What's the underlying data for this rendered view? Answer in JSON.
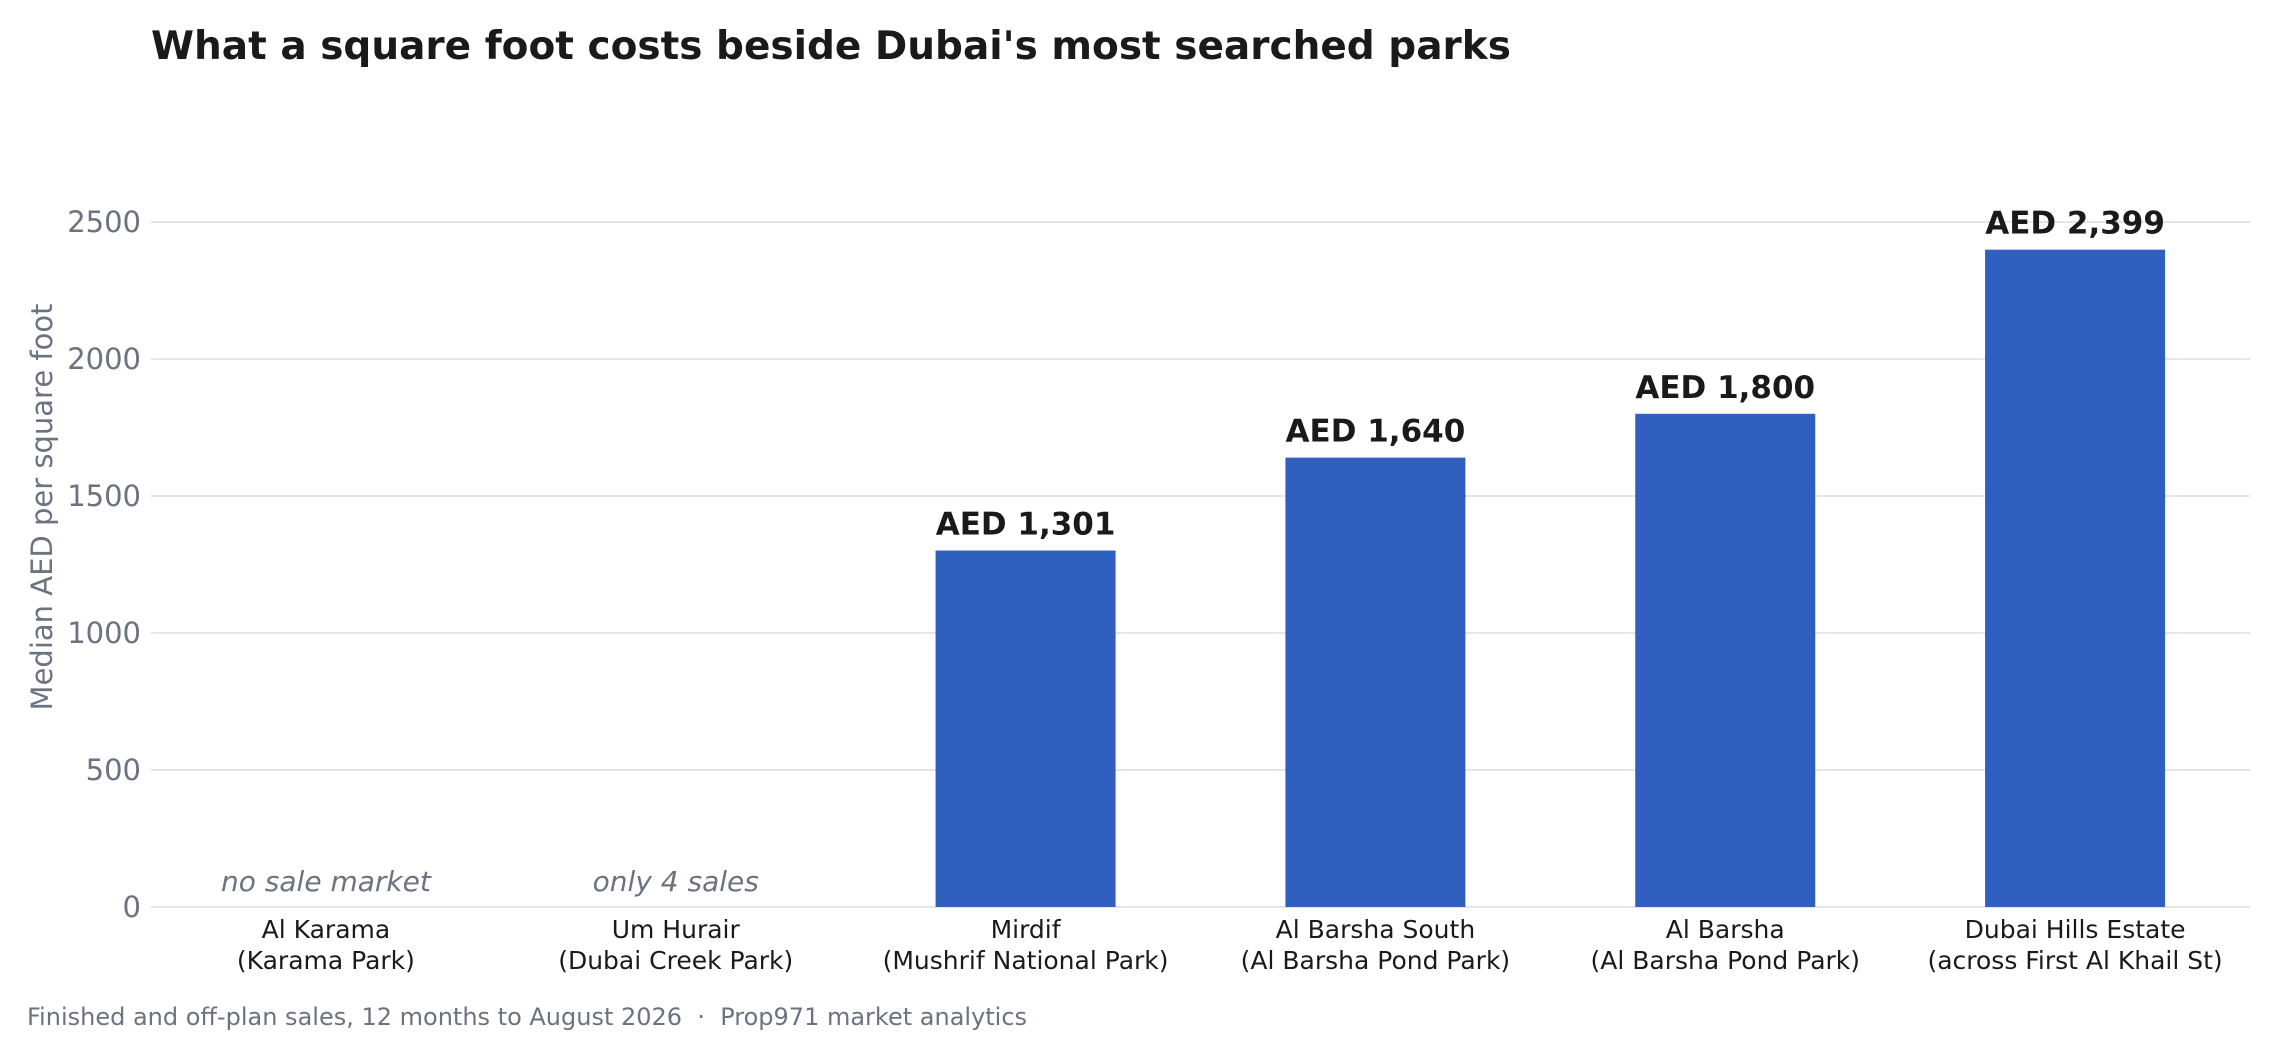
{
  "chart_data": {
    "type": "bar",
    "title": "What a square foot costs beside Dubai's most searched parks",
    "ylabel": "Median AED per square foot",
    "xlabel": "",
    "ylim": [
      0,
      2800
    ],
    "yticks": [
      0,
      500,
      1000,
      1500,
      2000,
      2500
    ],
    "grid": true,
    "categories": [
      [
        "Al Karama",
        "(Karama Park)"
      ],
      [
        "Um Hurair",
        "(Dubai Creek Park)"
      ],
      [
        "Mirdif",
        "(Mushrif National Park)"
      ],
      [
        "Al Barsha South",
        "(Al Barsha Pond Park)"
      ],
      [
        "Al Barsha",
        "(Al Barsha Pond Park)"
      ],
      [
        "Dubai Hills Estate",
        "(across First Al Khail St)"
      ]
    ],
    "values": [
      null,
      null,
      1301,
      1640,
      1800,
      2399
    ],
    "value_labels": [
      "",
      "",
      "AED 1,301",
      "AED 1,640",
      "AED 1,800",
      "AED 2,399"
    ],
    "annotations": [
      "no sale market",
      "only 4 sales",
      "",
      "",
      "",
      ""
    ],
    "footnote": "Finished and off-plan sales, 12 months to August 2026  ·  Prop971 market analytics",
    "colors": {
      "bar": "#2f5fbf",
      "title": "#1a1a1a",
      "axis_text": "#6b7280",
      "category_text": "#1a1a1a",
      "grid": "#e2e5ea",
      "annotation": "#6b7280"
    }
  }
}
